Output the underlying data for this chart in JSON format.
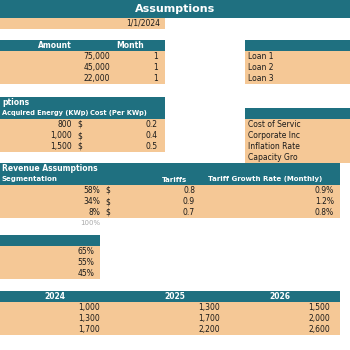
{
  "title": "Assumptions",
  "teal": "#1f7080",
  "orange": "#f5c896",
  "white": "#ffffff",
  "dark": "#1a1a1a",
  "gray": "#aaaaaa",
  "date_label": "1/1/2024",
  "loan_header": [
    "Amount",
    "Month"
  ],
  "loan_rows": [
    [
      "75,000",
      "1"
    ],
    [
      "45,000",
      "1"
    ],
    [
      "22,000",
      "1"
    ]
  ],
  "loan_labels": [
    "Loan 1",
    "Loan 2",
    "Loan 3"
  ],
  "energy_col1_header": "Acquired Energy (KWp)",
  "energy_col2_header": "Cost (Per KWp)",
  "energy_section_label": "ptions",
  "energy_rows": [
    [
      "800",
      "$",
      "0.2"
    ],
    [
      "1,000",
      "$",
      "0.4"
    ],
    [
      "1,500",
      "$",
      "0.5"
    ]
  ],
  "cost_labels": [
    "Cost of Servic",
    "Corporate Inc",
    "Inflation Rate",
    "Capacity Gro"
  ],
  "rev_section": "Revenue Assumptions",
  "rev_header": [
    "Segmentation",
    "Tariffs",
    "Tariff Growth Rate (Monthly)"
  ],
  "rev_rows": [
    [
      "58%",
      "$",
      "0.8",
      "0.9%"
    ],
    [
      "34%",
      "$",
      "0.9",
      "1.2%"
    ],
    [
      "8%",
      "$",
      "0.7",
      "0.8%"
    ]
  ],
  "rev_total": "100%",
  "pct_rows": [
    "65%",
    "55%",
    "45%"
  ],
  "year_header": [
    "2024",
    "2025",
    "2026"
  ],
  "year_rows": [
    [
      "1,000",
      "1,300",
      "1,500"
    ],
    [
      "1,300",
      "1,700",
      "2,000"
    ],
    [
      "1,700",
      "2,200",
      "2,600"
    ]
  ]
}
